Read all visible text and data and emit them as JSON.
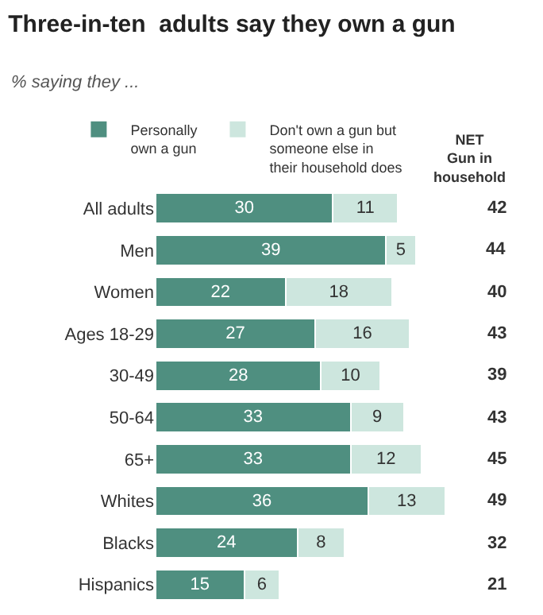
{
  "chart_data": {
    "type": "bar",
    "orientation": "horizontal",
    "stacked": true,
    "title": "Three-in-ten  adults say they own a gun",
    "subtitle": "% saying they ...",
    "categories": [
      "All adults",
      "Men",
      "Women",
      "Ages 18-29",
      "30-49",
      "50-64",
      "65+",
      "Whites",
      "Blacks",
      "Hispanics"
    ],
    "series": [
      {
        "name": "Personally own a gun",
        "color": "#4f8f80",
        "values": [
          30,
          39,
          22,
          27,
          28,
          33,
          33,
          36,
          24,
          15
        ]
      },
      {
        "name": "Don't own a gun but someone else in their household does",
        "color": "#cde6de",
        "values": [
          11,
          5,
          18,
          16,
          10,
          9,
          12,
          13,
          8,
          6
        ]
      }
    ],
    "annotations": [
      "NET Gun in household",
      "42",
      "44",
      "40",
      "43",
      "39",
      "43",
      "45",
      "49",
      "32",
      "21"
    ],
    "data_labels": true,
    "legend": "top"
  }
}
